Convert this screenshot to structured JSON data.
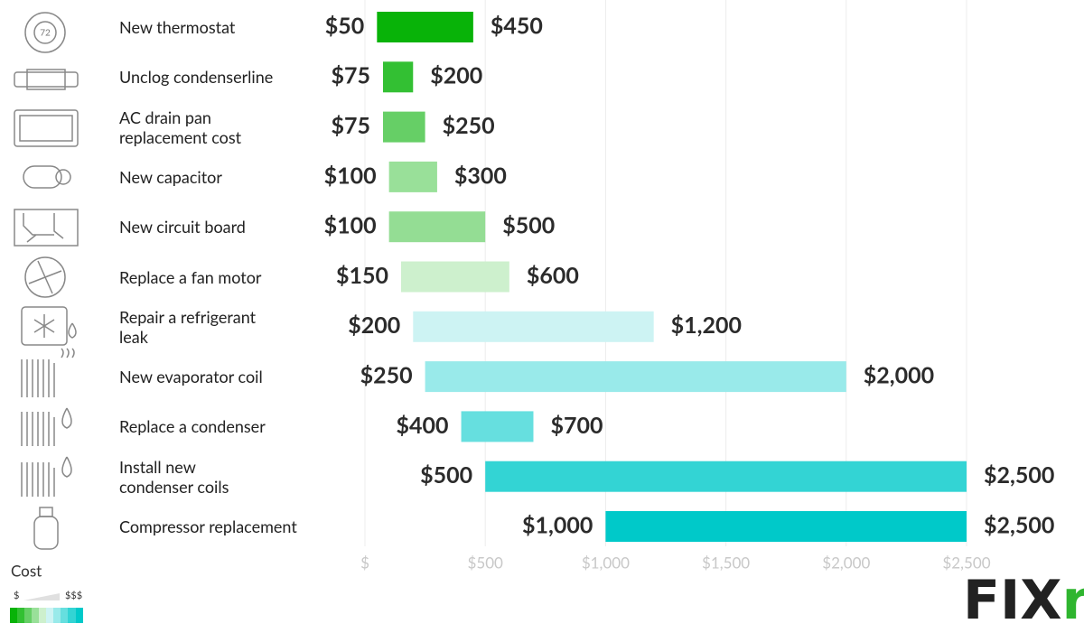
{
  "chart_data": {
    "type": "floating_bar",
    "categories": [
      "New thermostat",
      "Unclog condenserline",
      "AC drain pan\nreplacement cost",
      "New capacitor",
      "New circuit board",
      "Replace a fan motor",
      "Repair a refrigerant\nleak",
      "New evaporator coil",
      "Replace a condenser",
      "Install new\ncondenser coils",
      "Compressor replacement"
    ],
    "start": [
      50,
      75,
      75,
      100,
      100,
      150,
      200,
      250,
      400,
      500,
      1000
    ],
    "start_labels": [
      "$50",
      "$75",
      "$75",
      "$100",
      "$100",
      "$150",
      "$200",
      "$250",
      "$400",
      "$500",
      "$1,000"
    ],
    "end": [
      450,
      200,
      250,
      300,
      500,
      600,
      1200,
      2000,
      700,
      2500,
      2500
    ],
    "end_labels": [
      "$450",
      "$200",
      "$250",
      "$300",
      "$500",
      "$600",
      "$1,200",
      "$2,000",
      "$700",
      "$2,500",
      "$2,500"
    ],
    "colors": [
      "#08b308",
      "#33c033",
      "#66cf66",
      "#99e099",
      "#94dd94",
      "#cdf0cd",
      "#cdf3f3",
      "#99eaea",
      "#66dfdf",
      "#33d4d4",
      "#00c9c9"
    ],
    "xlim": [
      0,
      2500
    ],
    "xticks": [
      {
        "value": 0,
        "label": "$"
      },
      {
        "value": 500,
        "label": "$500"
      },
      {
        "value": 1000,
        "label": "$1,000"
      },
      {
        "value": 1500,
        "label": "$1,500"
      },
      {
        "value": 2000,
        "label": "$2,000"
      },
      {
        "value": 2500,
        "label": "$2,500"
      }
    ],
    "grid": true,
    "legend": {
      "title": "Cost",
      "low": "$",
      "high": "$$$"
    },
    "icon_text": "72",
    "logo": [
      "FIX",
      "r"
    ]
  }
}
